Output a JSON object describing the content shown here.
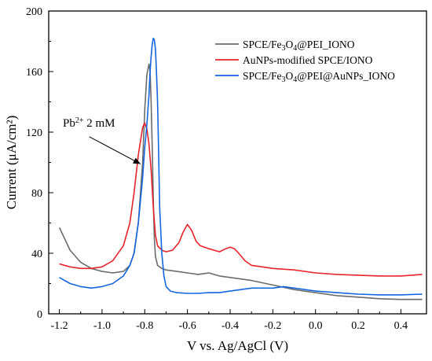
{
  "chart_data": {
    "type": "line",
    "xlabel": "V vs. Ag/AgCl (V)",
    "ylabel": "Current (μA/cm²)",
    "xlim": [
      -1.25,
      0.52
    ],
    "ylim": [
      0,
      200
    ],
    "x_ticks": [
      -1.2,
      -1.0,
      -0.8,
      -0.6,
      -0.4,
      -0.2,
      0.0,
      0.2,
      0.4
    ],
    "y_ticks": [
      0,
      40,
      80,
      120,
      160,
      200
    ],
    "x_tick_labels": [
      "-1.2",
      "-1.0",
      "-0.8",
      "-0.6",
      "-0.4",
      "-0.2",
      "0.0",
      "0.2",
      "0.4"
    ],
    "y_tick_labels": [
      "0",
      "40",
      "80",
      "120",
      "160",
      "200"
    ],
    "grid": false,
    "legend_position": "top-right",
    "annotation": {
      "text_main": "Pb",
      "text_sup": "2+",
      "text_rest": " 2 mM",
      "arrow_from": [
        -1.06,
        117
      ],
      "arrow_to": [
        -0.82,
        99
      ]
    },
    "series": [
      {
        "name": "SPCE/Fe3O4@PEI_IONO",
        "color": "#6b6b6b",
        "x": [
          -1.2,
          -1.15,
          -1.1,
          -1.05,
          -1.0,
          -0.95,
          -0.9,
          -0.87,
          -0.85,
          -0.83,
          -0.81,
          -0.8,
          -0.79,
          -0.78,
          -0.775,
          -0.77,
          -0.765,
          -0.76,
          -0.755,
          -0.75,
          -0.74,
          -0.72,
          -0.7,
          -0.65,
          -0.6,
          -0.55,
          -0.5,
          -0.45,
          -0.4,
          -0.35,
          -0.3,
          -0.2,
          -0.1,
          0.0,
          0.1,
          0.2,
          0.3,
          0.4,
          0.5
        ],
        "y": [
          57,
          42,
          34,
          30,
          28,
          27,
          28,
          32,
          40,
          60,
          100,
          135,
          158,
          165,
          160,
          140,
          110,
          75,
          50,
          38,
          32,
          30,
          29,
          28,
          27,
          26,
          27,
          25,
          24,
          23,
          22,
          19,
          16,
          14,
          12,
          11,
          10,
          9.5,
          9.5
        ]
      },
      {
        "name": "AuNPs-modified SPCE/IONO",
        "color": "#e8232a",
        "x": [
          -1.2,
          -1.15,
          -1.1,
          -1.05,
          -1.0,
          -0.95,
          -0.9,
          -0.87,
          -0.85,
          -0.83,
          -0.81,
          -0.8,
          -0.79,
          -0.78,
          -0.77,
          -0.76,
          -0.75,
          -0.74,
          -0.72,
          -0.7,
          -0.67,
          -0.64,
          -0.62,
          -0.6,
          -0.58,
          -0.56,
          -0.54,
          -0.5,
          -0.45,
          -0.42,
          -0.4,
          -0.38,
          -0.36,
          -0.33,
          -0.3,
          -0.25,
          -0.2,
          -0.1,
          0.0,
          0.1,
          0.2,
          0.3,
          0.4,
          0.5
        ],
        "y": [
          33,
          31,
          30,
          30,
          31,
          35,
          45,
          60,
          80,
          105,
          123,
          126,
          122,
          112,
          95,
          70,
          52,
          45,
          42,
          41,
          42,
          47,
          54,
          59,
          55,
          48,
          45,
          43,
          41,
          43,
          44,
          43,
          40,
          35,
          32,
          31,
          30,
          29,
          27,
          26,
          25.5,
          25,
          25,
          26
        ]
      },
      {
        "name": "SPCE/Fe3O4@PEI@AuNPs_IONO",
        "color": "#1565e0",
        "x": [
          -1.2,
          -1.15,
          -1.1,
          -1.05,
          -1.0,
          -0.95,
          -0.9,
          -0.87,
          -0.85,
          -0.83,
          -0.81,
          -0.8,
          -0.79,
          -0.78,
          -0.775,
          -0.77,
          -0.765,
          -0.76,
          -0.755,
          -0.75,
          -0.745,
          -0.74,
          -0.735,
          -0.73,
          -0.72,
          -0.71,
          -0.7,
          -0.68,
          -0.65,
          -0.6,
          -0.55,
          -0.5,
          -0.45,
          -0.4,
          -0.35,
          -0.3,
          -0.2,
          -0.15,
          -0.1,
          0.0,
          0.1,
          0.2,
          0.3,
          0.4,
          0.5
        ],
        "y": [
          24,
          20,
          18,
          17,
          18,
          20,
          25,
          32,
          40,
          60,
          90,
          110,
          125,
          145,
          160,
          170,
          178,
          182,
          181,
          175,
          160,
          140,
          105,
          70,
          40,
          25,
          18,
          15,
          14,
          13.5,
          13.5,
          14,
          14,
          15,
          16,
          17,
          17,
          18,
          17,
          15,
          14,
          13,
          12.5,
          12.5,
          13
        ]
      }
    ]
  },
  "legend": {
    "items": [
      {
        "parts": [
          [
            "SPCE/Fe",
            false
          ],
          [
            "3",
            true
          ],
          [
            "O",
            false
          ],
          [
            "4",
            true
          ],
          [
            "@PEI_IONO",
            false
          ]
        ],
        "color": "#6b6b6b"
      },
      {
        "parts": [
          [
            "AuNPs-modified SPCE/IONO",
            false
          ]
        ],
        "color": "#e8232a"
      },
      {
        "parts": [
          [
            "SPCE/Fe",
            false
          ],
          [
            "3",
            true
          ],
          [
            "O",
            false
          ],
          [
            "4",
            true
          ],
          [
            "@PEI@AuNPs_IONO",
            false
          ]
        ],
        "color": "#1565e0"
      }
    ]
  }
}
